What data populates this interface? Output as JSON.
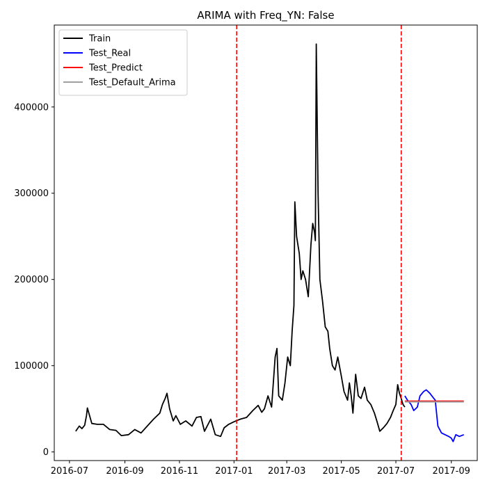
{
  "chart_data": {
    "type": "line",
    "title": "ARIMA with Freq_YN: False",
    "xlabel": "",
    "ylabel": "",
    "x_range": [
      "2016-06-14",
      "2017-09-30"
    ],
    "ylim": [
      -10000,
      495000
    ],
    "x_ticks": [
      "2016-07",
      "2016-09",
      "2016-11",
      "2017-01",
      "2017-03",
      "2017-05",
      "2017-07",
      "2017-09"
    ],
    "x_tick_dates": [
      "2016-07-01",
      "2016-09-01",
      "2016-11-01",
      "2017-01-01",
      "2017-03-01",
      "2017-05-01",
      "2017-07-01",
      "2017-09-01"
    ],
    "y_ticks": [
      0,
      100000,
      200000,
      300000,
      400000
    ],
    "y_tick_labels": [
      "0",
      "100000",
      "200000",
      "300000",
      "400000"
    ],
    "grid": false,
    "legend_position": "top-left",
    "vlines": [
      {
        "x": "2017-01-04",
        "color": "#ff0000",
        "style": "dashed"
      },
      {
        "x": "2017-07-07",
        "color": "#ff0000",
        "style": "dashed"
      }
    ],
    "series": [
      {
        "name": "Train",
        "color": "#000000",
        "points": [
          [
            "2016-07-08",
            24000
          ],
          [
            "2016-07-12",
            30000
          ],
          [
            "2016-07-15",
            27000
          ],
          [
            "2016-07-18",
            31000
          ],
          [
            "2016-07-20",
            42000
          ],
          [
            "2016-07-21",
            51000
          ],
          [
            "2016-07-23",
            44000
          ],
          [
            "2016-07-26",
            33000
          ],
          [
            "2016-08-01",
            32000
          ],
          [
            "2016-08-08",
            32000
          ],
          [
            "2016-08-15",
            26000
          ],
          [
            "2016-08-22",
            25000
          ],
          [
            "2016-08-28",
            19000
          ],
          [
            "2016-09-05",
            20000
          ],
          [
            "2016-09-12",
            26000
          ],
          [
            "2016-09-19",
            22000
          ],
          [
            "2016-09-26",
            30000
          ],
          [
            "2016-10-03",
            38000
          ],
          [
            "2016-10-10",
            45000
          ],
          [
            "2016-10-13",
            55000
          ],
          [
            "2016-10-16",
            62000
          ],
          [
            "2016-10-18",
            68000
          ],
          [
            "2016-10-21",
            50000
          ],
          [
            "2016-10-25",
            36000
          ],
          [
            "2016-10-28",
            42000
          ],
          [
            "2016-11-02",
            32000
          ],
          [
            "2016-11-08",
            36000
          ],
          [
            "2016-11-15",
            30000
          ],
          [
            "2016-11-20",
            40000
          ],
          [
            "2016-11-25",
            41000
          ],
          [
            "2016-11-29",
            24000
          ],
          [
            "2016-12-06",
            38000
          ],
          [
            "2016-12-11",
            20000
          ],
          [
            "2016-12-17",
            18000
          ],
          [
            "2016-12-21",
            28000
          ],
          [
            "2016-12-26",
            32000
          ],
          [
            "2017-01-01",
            35000
          ],
          [
            "2017-01-08",
            38000
          ],
          [
            "2017-01-15",
            40000
          ],
          [
            "2017-01-22",
            48000
          ],
          [
            "2017-01-28",
            54000
          ],
          [
            "2017-02-01",
            46000
          ],
          [
            "2017-02-04",
            50000
          ],
          [
            "2017-02-08",
            65000
          ],
          [
            "2017-02-12",
            52000
          ],
          [
            "2017-02-16",
            110000
          ],
          [
            "2017-02-18",
            120000
          ],
          [
            "2017-02-20",
            65000
          ],
          [
            "2017-02-24",
            60000
          ],
          [
            "2017-02-27",
            80000
          ],
          [
            "2017-03-02",
            110000
          ],
          [
            "2017-03-05",
            100000
          ],
          [
            "2017-03-07",
            140000
          ],
          [
            "2017-03-09",
            170000
          ],
          [
            "2017-03-10",
            290000
          ],
          [
            "2017-03-12",
            250000
          ],
          [
            "2017-03-15",
            230000
          ],
          [
            "2017-03-17",
            200000
          ],
          [
            "2017-03-19",
            210000
          ],
          [
            "2017-03-22",
            200000
          ],
          [
            "2017-03-25",
            180000
          ],
          [
            "2017-03-28",
            240000
          ],
          [
            "2017-03-30",
            265000
          ],
          [
            "2017-04-01",
            255000
          ],
          [
            "2017-04-02",
            245000
          ],
          [
            "2017-04-03",
            473000
          ],
          [
            "2017-04-05",
            300000
          ],
          [
            "2017-04-07",
            200000
          ],
          [
            "2017-04-10",
            175000
          ],
          [
            "2017-04-13",
            145000
          ],
          [
            "2017-04-16",
            140000
          ],
          [
            "2017-04-18",
            120000
          ],
          [
            "2017-04-21",
            100000
          ],
          [
            "2017-04-24",
            95000
          ],
          [
            "2017-04-27",
            110000
          ],
          [
            "2017-05-01",
            88000
          ],
          [
            "2017-05-04",
            70000
          ],
          [
            "2017-05-08",
            60000
          ],
          [
            "2017-05-10",
            80000
          ],
          [
            "2017-05-12",
            65000
          ],
          [
            "2017-05-14",
            45000
          ],
          [
            "2017-05-17",
            90000
          ],
          [
            "2017-05-20",
            65000
          ],
          [
            "2017-05-23",
            62000
          ],
          [
            "2017-05-27",
            75000
          ],
          [
            "2017-05-30",
            60000
          ],
          [
            "2017-06-03",
            55000
          ],
          [
            "2017-06-07",
            45000
          ],
          [
            "2017-06-10",
            35000
          ],
          [
            "2017-06-13",
            24000
          ],
          [
            "2017-06-17",
            28000
          ],
          [
            "2017-06-21",
            33000
          ],
          [
            "2017-06-25",
            40000
          ],
          [
            "2017-06-28",
            48000
          ],
          [
            "2017-07-01",
            55000
          ],
          [
            "2017-07-03",
            78000
          ],
          [
            "2017-07-05",
            68000
          ],
          [
            "2017-07-07",
            62000
          ],
          [
            "2017-07-09",
            55000
          ],
          [
            "2017-07-11",
            52000
          ]
        ]
      },
      {
        "name": "Test_Real",
        "color": "#0000ff",
        "points": [
          [
            "2017-07-11",
            65000
          ],
          [
            "2017-07-14",
            60000
          ],
          [
            "2017-07-18",
            55000
          ],
          [
            "2017-07-21",
            48000
          ],
          [
            "2017-07-25",
            52000
          ],
          [
            "2017-07-28",
            65000
          ],
          [
            "2017-08-01",
            70000
          ],
          [
            "2017-08-04",
            72000
          ],
          [
            "2017-08-08",
            68000
          ],
          [
            "2017-08-11",
            64000
          ],
          [
            "2017-08-14",
            60000
          ],
          [
            "2017-08-17",
            30000
          ],
          [
            "2017-08-21",
            22000
          ],
          [
            "2017-08-25",
            20000
          ],
          [
            "2017-08-29",
            18000
          ],
          [
            "2017-09-01",
            16000
          ],
          [
            "2017-09-03",
            12000
          ],
          [
            "2017-09-06",
            20000
          ],
          [
            "2017-09-10",
            18000
          ],
          [
            "2017-09-15",
            20000
          ]
        ]
      },
      {
        "name": "Test_Predict",
        "color": "#ff0000",
        "points": [
          [
            "2017-07-11",
            59000
          ],
          [
            "2017-09-15",
            59000
          ]
        ]
      },
      {
        "name": "Test_Default_Arima",
        "color": "#a0a0a0",
        "points": [
          [
            "2017-07-11",
            58000
          ],
          [
            "2017-09-15",
            58000
          ]
        ]
      }
    ]
  }
}
